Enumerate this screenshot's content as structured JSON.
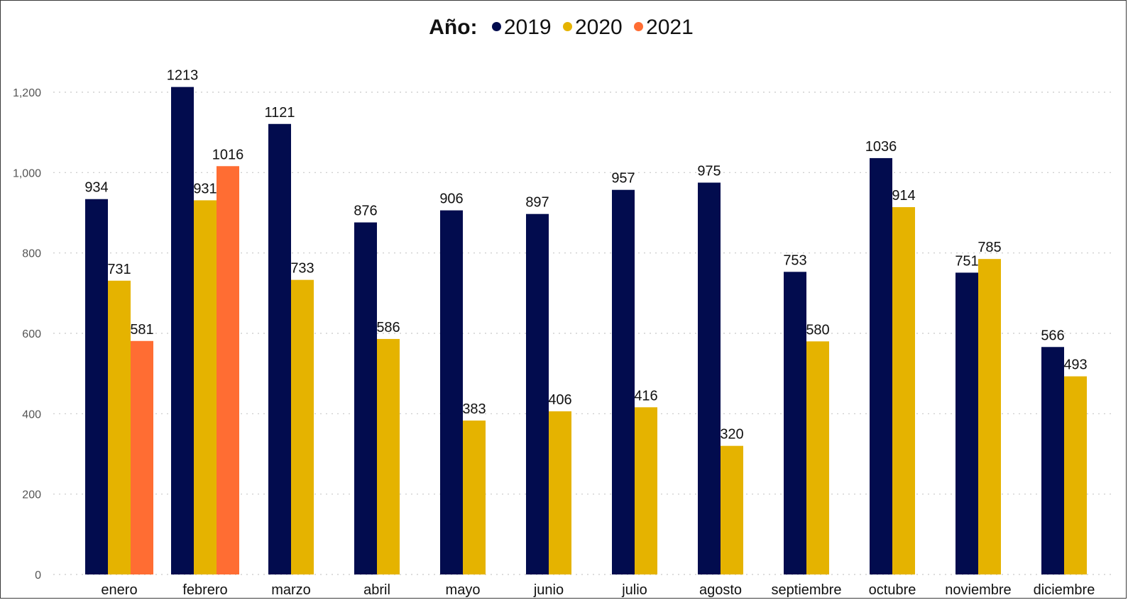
{
  "legend": {
    "title": "Año:"
  },
  "chart_data": {
    "type": "bar",
    "categories": [
      "enero",
      "febrero",
      "marzo",
      "abril",
      "mayo",
      "junio",
      "julio",
      "agosto",
      "septiembre",
      "octubre",
      "noviembre",
      "diciembre"
    ],
    "series": [
      {
        "name": "2019",
        "color": "#020C4E",
        "values": [
          934,
          1213,
          1121,
          876,
          906,
          897,
          957,
          975,
          753,
          1036,
          751,
          566
        ]
      },
      {
        "name": "2020",
        "color": "#E5B300",
        "values": [
          731,
          931,
          733,
          586,
          383,
          406,
          416,
          320,
          580,
          914,
          785,
          493
        ]
      },
      {
        "name": "2021",
        "color": "#FF6D33",
        "values": [
          581,
          1016,
          null,
          null,
          null,
          null,
          null,
          null,
          null,
          null,
          null,
          null
        ]
      }
    ],
    "ylim": [
      0,
      1200
    ],
    "yticks": [
      "0",
      "200",
      "400",
      "600",
      "800",
      "1,000",
      "1,200"
    ],
    "grid": true,
    "legend_position": "top-center",
    "title": "",
    "xlabel": "",
    "ylabel": ""
  }
}
